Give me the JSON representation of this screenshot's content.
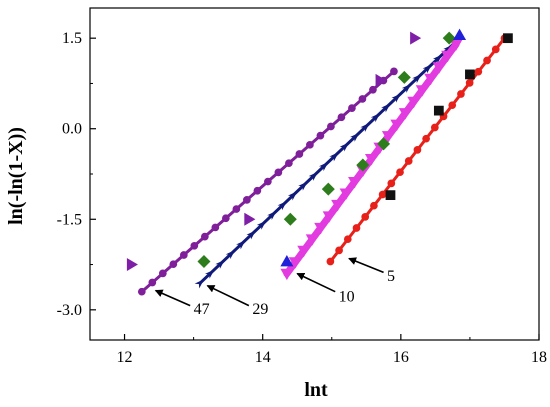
{
  "chart_data": {
    "type": "scatter",
    "xlabel": "lnt",
    "ylabel": "ln(-ln(1-X))",
    "xlim": [
      11.5,
      18
    ],
    "ylim": [
      -3.5,
      2
    ],
    "x_ticks": [
      12,
      14,
      16,
      18
    ],
    "y_ticks": [
      -3.0,
      -1.5,
      0.0,
      1.5
    ],
    "x_tick_labels": [
      "12",
      "14",
      "16",
      "18"
    ],
    "y_tick_labels": [
      "-3.0",
      "-1.5",
      "0.0",
      "1.5"
    ],
    "grid": false,
    "legend": "none",
    "series": [
      {
        "id": "47",
        "color": "#7f1fa8",
        "marker": "triangle-right",
        "points": [
          [
            12.1,
            -2.25
          ],
          [
            13.8,
            -1.5
          ],
          [
            15.7,
            0.8
          ],
          [
            16.2,
            1.5
          ]
        ],
        "fit": {
          "x": [
            12.25,
            15.9
          ],
          "y": [
            -2.7,
            0.95
          ],
          "color": "#7f1f9a",
          "marker": "circle"
        }
      },
      {
        "id": "29",
        "color": "#2e7d1c",
        "marker": "diamond",
        "points": [
          [
            13.15,
            -2.2
          ],
          [
            14.4,
            -1.5
          ],
          [
            14.95,
            -1.0
          ],
          [
            15.45,
            -0.6
          ],
          [
            15.75,
            -0.25
          ],
          [
            16.05,
            0.85
          ],
          [
            16.7,
            1.5
          ]
        ],
        "fit": {
          "x": [
            13.1,
            16.85
          ],
          "y": [
            -2.55,
            1.5
          ],
          "color": "#101a7a",
          "marker": "arrow"
        }
      },
      {
        "id": "10",
        "color": "#2020d8",
        "marker": "triangle-up",
        "points": [
          [
            14.35,
            -2.2
          ],
          [
            16.85,
            1.55
          ]
        ],
        "fit": {
          "x": [
            14.35,
            16.8
          ],
          "y": [
            -2.4,
            1.4
          ],
          "color": "#e23be0",
          "marker": "triangle-down"
        }
      },
      {
        "id": "5",
        "color": "#111111",
        "marker": "square",
        "points": [
          [
            15.85,
            -1.1
          ],
          [
            16.55,
            0.3
          ],
          [
            17.0,
            0.9
          ],
          [
            17.55,
            1.5
          ]
        ],
        "fit": {
          "x": [
            14.98,
            17.5
          ],
          "y": [
            -2.2,
            1.5
          ],
          "color": "#e8201a",
          "marker": "circle"
        }
      }
    ],
    "annotations": [
      {
        "text": "47",
        "arrow_from": [
          12.95,
          -2.93
        ],
        "arrow_to": [
          12.45,
          -2.68
        ],
        "text_at": [
          13.0,
          -2.97
        ]
      },
      {
        "text": "29",
        "arrow_from": [
          13.8,
          -2.93
        ],
        "arrow_to": [
          13.2,
          -2.6
        ],
        "text_at": [
          13.85,
          -2.97
        ]
      },
      {
        "text": "10",
        "arrow_from": [
          15.05,
          -2.7
        ],
        "arrow_to": [
          14.5,
          -2.4
        ],
        "text_at": [
          15.1,
          -2.76
        ]
      },
      {
        "text": "5",
        "arrow_from": [
          15.75,
          -2.38
        ],
        "arrow_to": [
          15.25,
          -2.15
        ],
        "text_at": [
          15.8,
          -2.42
        ]
      }
    ]
  }
}
